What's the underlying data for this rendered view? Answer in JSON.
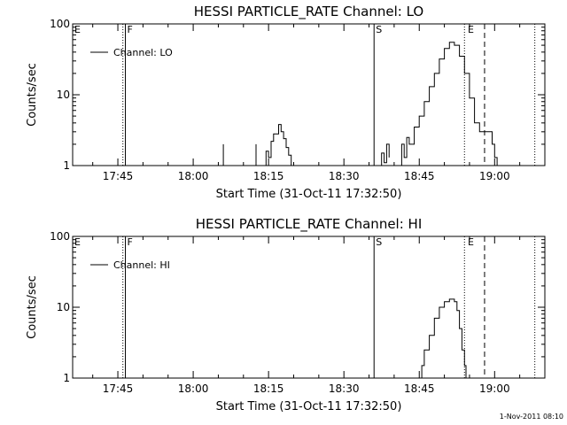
{
  "chart_data": [
    {
      "type": "line",
      "title": "HESSI PARTICLE_RATE Channel: LO",
      "ylabel": "Counts/sec",
      "xlabel": "Start Time (31-Oct-11 17:32:50)",
      "yscale": "log",
      "ylim": [
        1,
        100
      ],
      "xlim": [
        "17:36",
        "19:10"
      ],
      "y_ticks": [
        {
          "value": 1,
          "label": "1"
        },
        {
          "value": 10,
          "label": "10"
        },
        {
          "value": 100,
          "label": "100"
        }
      ],
      "x_ticks": [
        {
          "value": "17:45",
          "label": "17:45"
        },
        {
          "value": "18:00",
          "label": "18:00"
        },
        {
          "value": "18:15",
          "label": "18:15"
        },
        {
          "value": "18:30",
          "label": "18:30"
        },
        {
          "value": "18:45",
          "label": "18:45"
        },
        {
          "value": "19:00",
          "label": "19:00"
        }
      ],
      "markers": [
        {
          "label": "E",
          "x": "17:36",
          "style": "none"
        },
        {
          "label": "",
          "x": "17:46",
          "style": "dotted"
        },
        {
          "label": "F",
          "x": "17:46.5",
          "style": "solid"
        },
        {
          "label": "S",
          "x": "18:36",
          "style": "solid"
        },
        {
          "label": "",
          "x": "18:54",
          "style": "dotted"
        },
        {
          "label": "E",
          "x": "18:54.3",
          "style": "none"
        },
        {
          "label": "",
          "x": "18:58",
          "style": "dashed"
        },
        {
          "label": "",
          "x": "19:08",
          "style": "dotted"
        }
      ],
      "legend": {
        "label": "Channel: LO",
        "position": "top-left"
      },
      "series": [
        {
          "name": "Channel: LO",
          "segments": [
            [
              [
                "18:05.5",
                1
              ],
              [
                "18:06",
                2
              ]
            ],
            [
              [
                "18:12",
                1
              ],
              [
                "18:12.5",
                2
              ]
            ],
            [
              [
                "18:14",
                1
              ],
              [
                "18:14.5",
                1.6
              ],
              [
                "18:15",
                1.3
              ],
              [
                "18:15.5",
                2.2
              ],
              [
                "18:16",
                2.8
              ],
              [
                "18:17",
                3.8
              ],
              [
                "18:17.5",
                3
              ],
              [
                "18:18",
                2.4
              ],
              [
                "18:18.5",
                1.8
              ],
              [
                "18:19",
                1.4
              ],
              [
                "18:19.5",
                1
              ]
            ],
            [
              [
                "18:37",
                1
              ],
              [
                "18:37.5",
                1.5
              ],
              [
                "18:38",
                1.1
              ],
              [
                "18:38.5",
                2
              ],
              [
                "18:39",
                1.3
              ]
            ],
            [
              [
                "18:41",
                1
              ],
              [
                "18:41.5",
                2
              ],
              [
                "18:42",
                1.3
              ],
              [
                "18:42.5",
                2.5
              ],
              [
                "18:43",
                2
              ],
              [
                "18:44",
                3.5
              ],
              [
                "18:45",
                5
              ],
              [
                "18:46",
                8
              ],
              [
                "18:47",
                13
              ],
              [
                "18:48",
                20
              ],
              [
                "18:49",
                32
              ],
              [
                "18:50",
                45
              ],
              [
                "18:51",
                55
              ],
              [
                "18:52",
                50
              ],
              [
                "18:53",
                35
              ],
              [
                "18:54",
                20
              ],
              [
                "18:55",
                9
              ],
              [
                "18:56",
                4
              ],
              [
                "18:57",
                3
              ],
              [
                "18:58",
                3
              ],
              [
                "18:59",
                3
              ],
              [
                "18:59.5",
                2
              ],
              [
                "19:00",
                1.3
              ],
              [
                "19:00.5",
                1
              ]
            ]
          ]
        }
      ]
    },
    {
      "type": "line",
      "title": "HESSI PARTICLE_RATE Channel: HI",
      "ylabel": "Counts/sec",
      "xlabel": "Start Time (31-Oct-11 17:32:50)",
      "yscale": "log",
      "ylim": [
        1,
        100
      ],
      "xlim": [
        "17:36",
        "19:10"
      ],
      "y_ticks": [
        {
          "value": 1,
          "label": "1"
        },
        {
          "value": 10,
          "label": "10"
        },
        {
          "value": 100,
          "label": "100"
        }
      ],
      "x_ticks": [
        {
          "value": "17:45",
          "label": "17:45"
        },
        {
          "value": "18:00",
          "label": "18:00"
        },
        {
          "value": "18:15",
          "label": "18:15"
        },
        {
          "value": "18:30",
          "label": "18:30"
        },
        {
          "value": "18:45",
          "label": "18:45"
        },
        {
          "value": "19:00",
          "label": "19:00"
        }
      ],
      "markers": [
        {
          "label": "E",
          "x": "17:36",
          "style": "none"
        },
        {
          "label": "",
          "x": "17:46",
          "style": "dotted"
        },
        {
          "label": "F",
          "x": "17:46.5",
          "style": "solid"
        },
        {
          "label": "S",
          "x": "18:36",
          "style": "solid"
        },
        {
          "label": "",
          "x": "18:54",
          "style": "dotted"
        },
        {
          "label": "E",
          "x": "18:54.3",
          "style": "none"
        },
        {
          "label": "",
          "x": "18:58",
          "style": "dashed"
        },
        {
          "label": "",
          "x": "19:08",
          "style": "dotted"
        }
      ],
      "legend": {
        "label": "Channel: HI",
        "position": "top-left"
      },
      "series": [
        {
          "name": "Channel: HI",
          "segments": [
            [
              [
                "18:45",
                1
              ],
              [
                "18:45.5",
                1.5
              ],
              [
                "18:46",
                2.5
              ],
              [
                "18:47",
                4
              ],
              [
                "18:48",
                7
              ],
              [
                "18:49",
                10
              ],
              [
                "18:50",
                12
              ],
              [
                "18:51",
                13
              ],
              [
                "18:52",
                12
              ],
              [
                "18:52.5",
                9
              ],
              [
                "18:53",
                5
              ],
              [
                "18:53.5",
                2.5
              ],
              [
                "18:54",
                1.5
              ],
              [
                "18:54.3",
                1
              ]
            ]
          ]
        }
      ]
    }
  ],
  "footer": {
    "timestamp": "1-Nov-2011 08:10"
  }
}
